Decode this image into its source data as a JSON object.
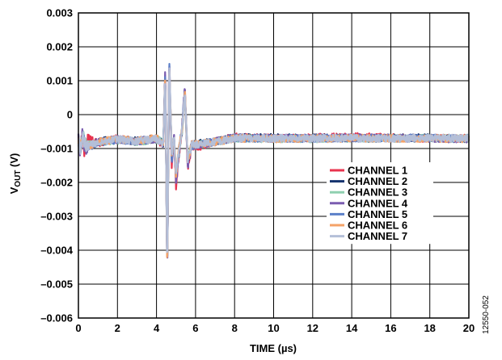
{
  "chart_data": {
    "type": "line",
    "title": "",
    "xlabel": "TIME (µs)",
    "ylabel_main": "V",
    "ylabel_sub": "OUT",
    "ylabel_unit": " (V)",
    "xlim": [
      0,
      20
    ],
    "ylim": [
      -0.006,
      0.003
    ],
    "x_ticks": [
      0,
      2,
      4,
      6,
      8,
      10,
      12,
      14,
      16,
      18,
      20
    ],
    "x_tick_labels": [
      "0",
      "2",
      "4",
      "6",
      "8",
      "10",
      "12",
      "14",
      "16",
      "18",
      "20"
    ],
    "y_ticks": [
      0.003,
      0.002,
      0.001,
      0,
      -0.001,
      -0.002,
      -0.003,
      -0.004,
      -0.005,
      -0.006
    ],
    "y_tick_labels": [
      "0.003",
      "0.002",
      "0.001",
      "0",
      "–0.001",
      "–0.002",
      "–0.003",
      "–0.004",
      "–0.005",
      "–0.006"
    ],
    "grid": true,
    "legend_position": "right-center",
    "baseline": -0.00075,
    "series": [
      {
        "name": "CHANNEL 1",
        "color": "#e8344f",
        "points": [
          [
            0,
            -0.00075
          ],
          [
            0.1,
            -0.0011
          ],
          [
            0.2,
            -0.0006
          ],
          [
            0.3,
            -0.00105
          ],
          [
            0.5,
            -0.0007
          ],
          [
            1,
            -0.00085
          ],
          [
            2,
            -0.0007
          ],
          [
            3,
            -0.0008
          ],
          [
            4,
            -0.00072
          ],
          [
            4.35,
            -0.0009
          ],
          [
            4.45,
            0.0012
          ],
          [
            4.55,
            -0.0047
          ],
          [
            4.65,
            0.0015
          ],
          [
            4.78,
            -0.0015
          ],
          [
            4.9,
            -0.0008
          ],
          [
            5.0,
            -0.0021
          ],
          [
            5.15,
            -0.0012
          ],
          [
            5.3,
            -0.0005
          ],
          [
            5.45,
            0.0006
          ],
          [
            5.6,
            -0.0016
          ],
          [
            5.8,
            -0.0009
          ],
          [
            6.2,
            -0.00095
          ],
          [
            7,
            -0.0008
          ],
          [
            8,
            -0.00065
          ],
          [
            10,
            -0.0007
          ],
          [
            14,
            -0.00065
          ],
          [
            18,
            -0.0007
          ],
          [
            20,
            -0.0007
          ]
        ]
      },
      {
        "name": "CHANNEL 2",
        "color": "#14326e",
        "points": [
          [
            0,
            -0.00072
          ],
          [
            0.1,
            -0.00105
          ],
          [
            0.2,
            -0.00065
          ],
          [
            0.4,
            -0.00095
          ],
          [
            1,
            -0.0008
          ],
          [
            2,
            -0.00072
          ],
          [
            3,
            -0.00078
          ],
          [
            4,
            -0.0007
          ],
          [
            4.35,
            -0.00085
          ],
          [
            4.45,
            0.0013
          ],
          [
            4.55,
            -0.0048
          ],
          [
            4.65,
            0.0016
          ],
          [
            4.78,
            -0.0013
          ],
          [
            4.9,
            -0.0007
          ],
          [
            5.0,
            -0.0019
          ],
          [
            5.15,
            -0.0011
          ],
          [
            5.3,
            -0.0005
          ],
          [
            5.45,
            0.0007
          ],
          [
            5.6,
            -0.0014
          ],
          [
            5.8,
            -0.0009
          ],
          [
            6.2,
            -0.00085
          ],
          [
            7,
            -0.0008
          ],
          [
            8,
            -0.00068
          ],
          [
            10,
            -0.00068
          ],
          [
            14,
            -0.0007
          ],
          [
            18,
            -0.00068
          ],
          [
            20,
            -0.00072
          ]
        ]
      },
      {
        "name": "CHANNEL 3",
        "color": "#8fd0b0",
        "points": [
          [
            0,
            -0.00078
          ],
          [
            0.1,
            -0.001
          ],
          [
            0.25,
            -0.0006
          ],
          [
            0.4,
            -0.0009
          ],
          [
            1,
            -0.00082
          ],
          [
            2,
            -0.00075
          ],
          [
            3,
            -0.0008
          ],
          [
            4,
            -0.00073
          ],
          [
            4.35,
            -0.0008
          ],
          [
            4.45,
            0.0011
          ],
          [
            4.55,
            -0.0046
          ],
          [
            4.65,
            0.0014
          ],
          [
            4.78,
            -0.0012
          ],
          [
            4.9,
            -0.0008
          ],
          [
            5.0,
            -0.0018
          ],
          [
            5.15,
            -0.001
          ],
          [
            5.3,
            -0.0006
          ],
          [
            5.45,
            0.0005
          ],
          [
            5.6,
            -0.0013
          ],
          [
            5.8,
            -0.0009
          ],
          [
            6.2,
            -0.00088
          ],
          [
            7,
            -0.0008
          ],
          [
            8,
            -0.0007
          ],
          [
            10,
            -0.00072
          ],
          [
            14,
            -0.0007
          ],
          [
            18,
            -0.0007
          ],
          [
            20,
            -0.0007
          ]
        ]
      },
      {
        "name": "CHANNEL 4",
        "color": "#7a5cb0",
        "points": [
          [
            0,
            -0.00074
          ],
          [
            0.1,
            -0.00115
          ],
          [
            0.2,
            -0.0006
          ],
          [
            0.35,
            -0.001
          ],
          [
            1,
            -0.0008
          ],
          [
            2,
            -0.00073
          ],
          [
            3,
            -0.00079
          ],
          [
            4,
            -0.00071
          ],
          [
            4.35,
            -0.0009
          ],
          [
            4.45,
            0.0014
          ],
          [
            4.55,
            -0.0048
          ],
          [
            4.65,
            0.00175
          ],
          [
            4.78,
            -0.0014
          ],
          [
            4.9,
            -0.0007
          ],
          [
            5.0,
            -0.002
          ],
          [
            5.15,
            -0.0011
          ],
          [
            5.3,
            -0.0004
          ],
          [
            5.45,
            0.0008
          ],
          [
            5.6,
            -0.0015
          ],
          [
            5.8,
            -0.0009
          ],
          [
            6.2,
            -0.0009
          ],
          [
            7,
            -0.0008
          ],
          [
            8,
            -0.00068
          ],
          [
            10,
            -0.0007
          ],
          [
            14,
            -0.00068
          ],
          [
            18,
            -0.0007
          ],
          [
            20,
            -0.00072
          ]
        ]
      },
      {
        "name": "CHANNEL 5",
        "color": "#5b7fc8",
        "points": [
          [
            0,
            -0.00076
          ],
          [
            0.1,
            -0.00108
          ],
          [
            0.2,
            -0.00062
          ],
          [
            0.4,
            -0.00098
          ],
          [
            1,
            -0.00083
          ],
          [
            2,
            -0.00074
          ],
          [
            3,
            -0.00078
          ],
          [
            4,
            -0.00072
          ],
          [
            4.35,
            -0.00088
          ],
          [
            4.45,
            0.0013
          ],
          [
            4.55,
            -0.00475
          ],
          [
            4.65,
            0.0017
          ],
          [
            4.78,
            -0.0013
          ],
          [
            4.9,
            -0.0007
          ],
          [
            5.0,
            -0.0019
          ],
          [
            5.15,
            -0.001
          ],
          [
            5.3,
            -0.0005
          ],
          [
            5.45,
            0.00075
          ],
          [
            5.6,
            -0.0014
          ],
          [
            5.8,
            -0.0009
          ],
          [
            6.2,
            -0.00087
          ],
          [
            7,
            -0.0008
          ],
          [
            8,
            -0.0007
          ],
          [
            10,
            -0.0007
          ],
          [
            14,
            -0.0007
          ],
          [
            18,
            -0.00069
          ],
          [
            20,
            -0.0007
          ]
        ]
      },
      {
        "name": "CHANNEL 6",
        "color": "#f4a268",
        "points": [
          [
            0,
            -0.00073
          ],
          [
            0.1,
            -0.001
          ],
          [
            0.2,
            -0.00058
          ],
          [
            0.4,
            -0.00095
          ],
          [
            1,
            -0.00081
          ],
          [
            2,
            -0.00072
          ],
          [
            3,
            -0.00077
          ],
          [
            4,
            -0.0007
          ],
          [
            4.35,
            -0.00086
          ],
          [
            4.45,
            0.00125
          ],
          [
            4.55,
            -0.0047
          ],
          [
            4.65,
            0.00165
          ],
          [
            4.78,
            -0.0012
          ],
          [
            4.9,
            -0.0007
          ],
          [
            5.0,
            -0.0018
          ],
          [
            5.15,
            -0.001
          ],
          [
            5.3,
            -0.0005
          ],
          [
            5.45,
            0.0007
          ],
          [
            5.6,
            -0.0013
          ],
          [
            5.8,
            -0.0009
          ],
          [
            6.2,
            -0.00086
          ],
          [
            7,
            -0.0008
          ],
          [
            8,
            -0.0007
          ],
          [
            10,
            -0.00071
          ],
          [
            14,
            -0.0007
          ],
          [
            18,
            -0.0007
          ],
          [
            20,
            -0.00071
          ]
        ]
      },
      {
        "name": "CHANNEL 7",
        "color": "#b4bfd8",
        "points": [
          [
            0,
            -0.00075
          ],
          [
            0.1,
            -0.00102
          ],
          [
            0.2,
            -0.0006
          ],
          [
            0.4,
            -0.00096
          ],
          [
            1,
            -0.0008
          ],
          [
            2,
            -0.00073
          ],
          [
            3,
            -0.00078
          ],
          [
            4,
            -0.00071
          ],
          [
            4.35,
            -0.00087
          ],
          [
            4.45,
            0.0012
          ],
          [
            4.55,
            -0.0046
          ],
          [
            4.65,
            0.0016
          ],
          [
            4.78,
            -0.0012
          ],
          [
            4.9,
            -0.0007
          ],
          [
            5.0,
            -0.0018
          ],
          [
            5.15,
            -0.001
          ],
          [
            5.3,
            -0.0005
          ],
          [
            5.45,
            0.0007
          ],
          [
            5.6,
            -0.0013
          ],
          [
            5.8,
            -0.0009
          ],
          [
            6.2,
            -0.00086
          ],
          [
            7,
            -0.0008
          ],
          [
            8,
            -0.0007
          ],
          [
            10,
            -0.0007
          ],
          [
            14,
            -0.0007
          ],
          [
            18,
            -0.0007
          ],
          [
            20,
            -0.0007
          ]
        ]
      }
    ]
  },
  "figure_id": "12550-052"
}
